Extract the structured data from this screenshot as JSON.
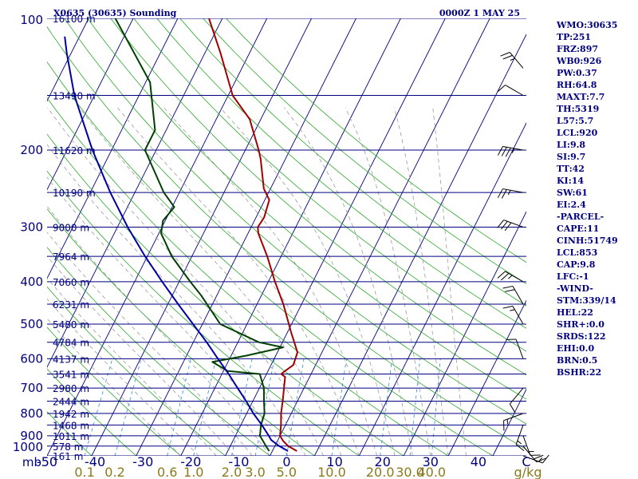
{
  "header": {
    "station": "X0635 (30635) Sounding",
    "time": "0000Z  1 MAY 25"
  },
  "stats": [
    "WMO:30635",
    "TP:251",
    "FRZ:897",
    "WB0:926",
    "PW:0.37",
    "RH:64.8",
    "MAXT:7.7",
    "TH:5319",
    "L57:5.7",
    "LCL:920",
    "LI:9.8",
    "SI:9.7",
    "TT:42",
    "KI:14",
    "SW:61",
    "EI:2.4",
    "-PARCEL-",
    "CAPE:11",
    "CINH:51749",
    "LCL:853",
    "CAP:9.8",
    "LFC:-1",
    "-WIND-",
    "STM:339/14",
    "HEL:22",
    "SHR+:0.0",
    "SRDS:122",
    "EHI:0.0",
    "BRN:0.5",
    "BSHR:22"
  ],
  "colors": {
    "isobar": "#000080",
    "isotherm": "#000080",
    "dry_adiabat": "#2BA82B",
    "moist_adiabat": "#9B9B9B",
    "mixing_ratio": "#2C8CD8",
    "temperature": "#A00000",
    "dewpoint": "#004000",
    "parcel": "#0000A0",
    "text": "#000080",
    "mixing_label": "#8B7A1A"
  },
  "chart_data": {
    "type": "line",
    "xlabel": "C",
    "ylabel": "mb",
    "y_scale": "log",
    "ylim": [
      1000,
      100
    ],
    "xlim": [
      -50,
      50
    ],
    "x_ticks": [
      "-50",
      "-40",
      "-30",
      "-20",
      "-10",
      "0",
      "10",
      "20",
      "30",
      "40",
      "C"
    ],
    "pressure_levels": [
      {
        "p": 100,
        "label": "100",
        "height": "16100 m"
      },
      {
        "p": 150,
        "label": "",
        "height": "13490 m"
      },
      {
        "p": 200,
        "label": "200",
        "height": "11620 m"
      },
      {
        "p": 250,
        "label": "",
        "height": "10190 m"
      },
      {
        "p": 300,
        "label": "300",
        "height": "9000 m"
      },
      {
        "p": 350,
        "label": "",
        "height": "7964 m"
      },
      {
        "p": 400,
        "label": "400",
        "height": "7060 m"
      },
      {
        "p": 450,
        "label": "",
        "height": "6231 m"
      },
      {
        "p": 500,
        "label": "500",
        "height": "5480 m"
      },
      {
        "p": 550,
        "label": "",
        "height": "4784 m"
      },
      {
        "p": 600,
        "label": "600",
        "height": "4137 m"
      },
      {
        "p": 650,
        "label": "",
        "height": "3541 m"
      },
      {
        "p": 700,
        "label": "700",
        "height": "2980 m"
      },
      {
        "p": 750,
        "label": "",
        "height": "2444 m"
      },
      {
        "p": 800,
        "label": "800",
        "height": "1942 m"
      },
      {
        "p": 850,
        "label": "",
        "height": "1468 m"
      },
      {
        "p": 900,
        "label": "900",
        "height": "1011 m"
      },
      {
        "p": 950,
        "label": "",
        "height": "578 m"
      },
      {
        "p": 1000,
        "label": "1000",
        "height": "161 m"
      }
    ],
    "mixing_ratio_labels": [
      "0.1",
      "0.2",
      "0.6",
      "1.0",
      "2.0",
      "3.0",
      "5.0",
      "10.0",
      "20.0",
      "30.0",
      "40.0",
      "g/kg"
    ],
    "mixing_ratio_values": [
      0.1,
      0.2,
      0.6,
      1.0,
      2.0,
      3.0,
      5.0,
      10.0,
      20.0,
      30.0,
      40.0
    ],
    "series": [
      {
        "key": "temperature",
        "points": [
          {
            "p": 975,
            "t": 5.5
          },
          {
            "p": 950,
            "t": 3.0
          },
          {
            "p": 925,
            "t": 1.3
          },
          {
            "p": 900,
            "t": 0.0
          },
          {
            "p": 850,
            "t": -1.0
          },
          {
            "p": 800,
            "t": -2.3
          },
          {
            "p": 750,
            "t": -3.3
          },
          {
            "p": 700,
            "t": -4.5
          },
          {
            "p": 660,
            "t": -5.5
          },
          {
            "p": 650,
            "t": -6.7
          },
          {
            "p": 640,
            "t": -6.2
          },
          {
            "p": 620,
            "t": -5.0
          },
          {
            "p": 580,
            "t": -5.5
          },
          {
            "p": 520,
            "t": -9.3
          },
          {
            "p": 450,
            "t": -14.1
          },
          {
            "p": 400,
            "t": -18.5
          },
          {
            "p": 350,
            "t": -23.1
          },
          {
            "p": 310,
            "t": -27.7
          },
          {
            "p": 300,
            "t": -28.5
          },
          {
            "p": 285,
            "t": -28.2
          },
          {
            "p": 260,
            "t": -29.0
          },
          {
            "p": 245,
            "t": -31.5
          },
          {
            "p": 210,
            "t": -35.5
          },
          {
            "p": 200,
            "t": -37.0
          },
          {
            "p": 170,
            "t": -42.5
          },
          {
            "p": 150,
            "t": -49.0
          },
          {
            "p": 120,
            "t": -56.5
          },
          {
            "p": 100,
            "t": -63.0
          }
        ]
      },
      {
        "key": "dewpoint",
        "points": [
          {
            "p": 975,
            "t": -0.7
          },
          {
            "p": 950,
            "t": -2.0
          },
          {
            "p": 900,
            "t": -4.5
          },
          {
            "p": 850,
            "t": -5.5
          },
          {
            "p": 800,
            "t": -6.0
          },
          {
            "p": 750,
            "t": -7.5
          },
          {
            "p": 700,
            "t": -9.0
          },
          {
            "p": 650,
            "t": -11.5
          },
          {
            "p": 640,
            "t": -19.0
          },
          {
            "p": 610,
            "t": -23.5
          },
          {
            "p": 590,
            "t": -16.5
          },
          {
            "p": 565,
            "t": -9.3
          },
          {
            "p": 550,
            "t": -15.3
          },
          {
            "p": 500,
            "t": -26.0
          },
          {
            "p": 430,
            "t": -33.5
          },
          {
            "p": 400,
            "t": -37.5
          },
          {
            "p": 350,
            "t": -44.5
          },
          {
            "p": 310,
            "t": -49.5
          },
          {
            "p": 290,
            "t": -50.5
          },
          {
            "p": 270,
            "t": -49.5
          },
          {
            "p": 250,
            "t": -53.5
          },
          {
            "p": 200,
            "t": -62.5
          },
          {
            "p": 180,
            "t": -62.5
          },
          {
            "p": 140,
            "t": -69.0
          },
          {
            "p": 100,
            "t": -84.0
          }
        ]
      },
      {
        "key": "parcel",
        "points": [
          {
            "p": 975,
            "t": 3.5
          },
          {
            "p": 950,
            "t": 1.0
          },
          {
            "p": 920,
            "t": -1.5
          },
          {
            "p": 900,
            "t": -2.5
          },
          {
            "p": 850,
            "t": -5.3
          },
          {
            "p": 800,
            "t": -8.5
          },
          {
            "p": 750,
            "t": -11.5
          },
          {
            "p": 700,
            "t": -14.9
          },
          {
            "p": 650,
            "t": -18.5
          },
          {
            "p": 600,
            "t": -22.6
          },
          {
            "p": 550,
            "t": -27.0
          },
          {
            "p": 500,
            "t": -32.1
          },
          {
            "p": 450,
            "t": -37.7
          },
          {
            "p": 400,
            "t": -43.8
          },
          {
            "p": 350,
            "t": -50.5
          },
          {
            "p": 300,
            "t": -57.7
          },
          {
            "p": 250,
            "t": -65.5
          },
          {
            "p": 200,
            "t": -74.3
          },
          {
            "p": 150,
            "t": -84.5
          },
          {
            "p": 120,
            "t": -91.0
          },
          {
            "p": 110,
            "t": -93.3
          }
        ]
      }
    ],
    "wind_barbs": [
      {
        "p": 1000,
        "dir": 110,
        "spd": 15
      },
      {
        "p": 950,
        "dir": 140,
        "spd": 20
      },
      {
        "p": 900,
        "dir": 160,
        "spd": 15
      },
      {
        "p": 850,
        "dir": 200,
        "spd": 15
      },
      {
        "p": 800,
        "dir": 250,
        "spd": 15
      },
      {
        "p": 700,
        "dir": 220,
        "spd": 10
      },
      {
        "p": 600,
        "dir": 340,
        "spd": 10
      },
      {
        "p": 500,
        "dir": 330,
        "spd": 15
      },
      {
        "p": 450,
        "dir": 330,
        "spd": 20
      },
      {
        "p": 400,
        "dir": 300,
        "spd": 25
      },
      {
        "p": 300,
        "dir": 290,
        "spd": 30
      },
      {
        "p": 250,
        "dir": 280,
        "spd": 25
      },
      {
        "p": 200,
        "dir": 280,
        "spd": 35
      },
      {
        "p": 150,
        "dir": 300,
        "spd": 10
      },
      {
        "p": 130,
        "dir": 320,
        "spd": 25
      }
    ]
  }
}
